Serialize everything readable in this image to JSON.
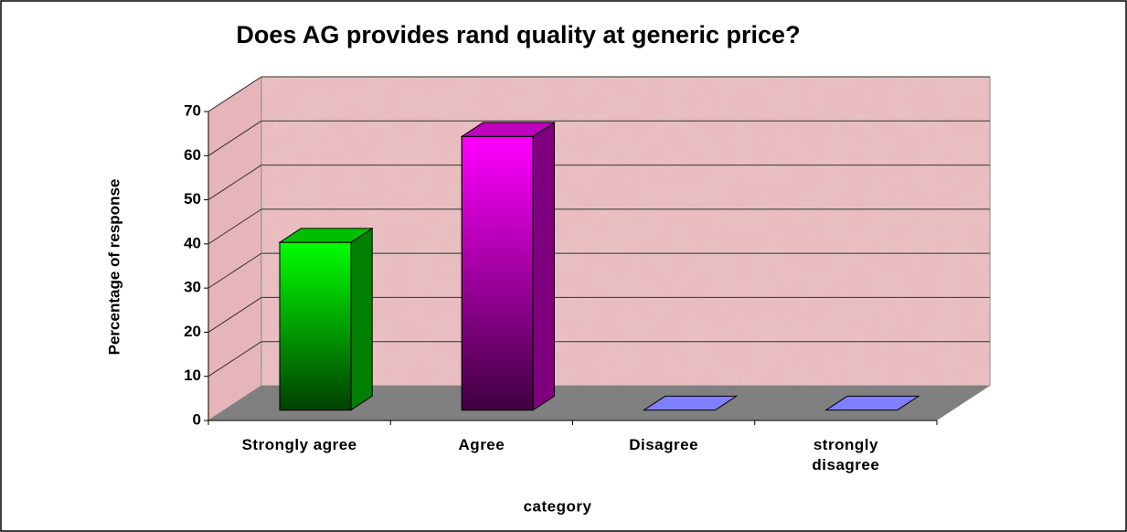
{
  "chart_data": {
    "type": "bar3d",
    "title": "Does AG provides rand quality at generic price?",
    "x_label": "category",
    "y_label": "Percentage of response",
    "categories": [
      "Strongly agree",
      "Agree",
      "Disagree",
      "strongly disagree"
    ],
    "values": [
      38,
      62,
      0,
      0
    ],
    "colors": [
      "#00ff00",
      "#ff00ff",
      "#8080ff",
      "#8080ff"
    ],
    "ylim": [
      0,
      70
    ],
    "yticks": [
      0,
      10,
      20,
      30,
      40,
      50,
      60,
      70
    ],
    "grid": true
  }
}
